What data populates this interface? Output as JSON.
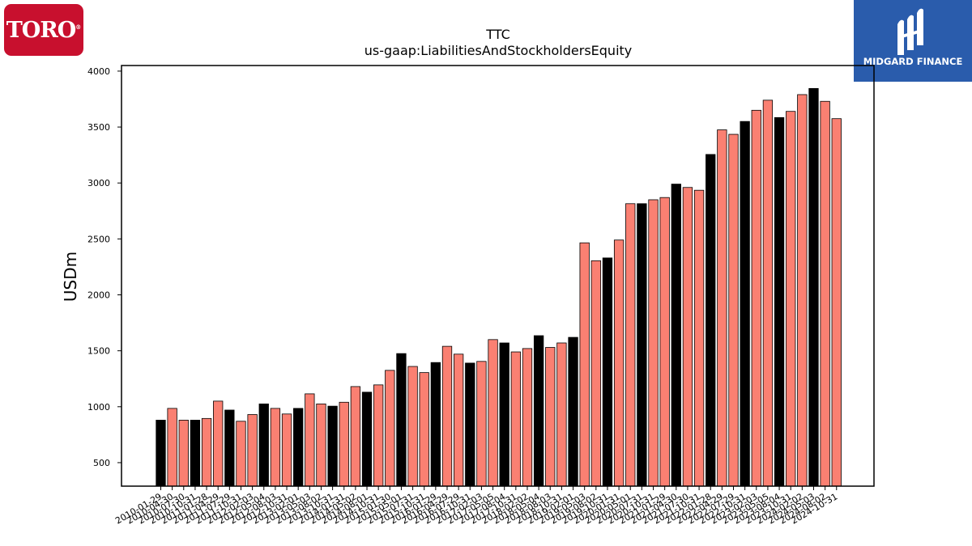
{
  "logos": {
    "left": {
      "text": "TORO",
      "mark": "®",
      "color": "#c8102e"
    },
    "right": {
      "text": "MIDGARD FINANCE",
      "color": "#2a5cac"
    }
  },
  "chart_data": {
    "type": "bar",
    "title": "TTC",
    "subtitle": "us-gaap:LiabilitiesAndStockholdersEquity",
    "xlabel": "",
    "ylabel": "USDm",
    "ylim": [
      290,
      4050
    ],
    "yticks": [
      500,
      1000,
      1500,
      2000,
      2500,
      3000,
      3500,
      4000
    ],
    "grid": false,
    "colors": {
      "annual": "#000000",
      "quarter": "#fa8072",
      "edge": "#000000"
    },
    "categories": [
      "2010-01-29",
      "2010-04-30",
      "2010-07-30",
      "2010-10-31",
      "2011-01-28",
      "2011-04-29",
      "2011-07-29",
      "2011-10-31",
      "2012-02-03",
      "2012-05-04",
      "2012-08-03",
      "2012-10-31",
      "2013-02-01",
      "2013-05-03",
      "2013-08-02",
      "2013-10-31",
      "2014-01-31",
      "2014-05-02",
      "2014-08-01",
      "2014-10-31",
      "2015-01-30",
      "2015-05-01",
      "2015-07-31",
      "2015-10-31",
      "2016-01-29",
      "2016-04-29",
      "2016-07-29",
      "2016-10-31",
      "2017-02-03",
      "2017-05-05",
      "2017-08-04",
      "2017-10-31",
      "2018-02-02",
      "2018-05-04",
      "2018-08-03",
      "2018-10-31",
      "2019-02-01",
      "2019-05-03",
      "2019-08-02",
      "2019-10-31",
      "2020-01-31",
      "2020-05-01",
      "2020-07-31",
      "2020-10-31",
      "2021-01-29",
      "2021-04-30",
      "2021-07-30",
      "2021-10-31",
      "2022-01-28",
      "2022-04-29",
      "2022-07-29",
      "2022-10-31",
      "2023-02-03",
      "2023-05-05",
      "2023-08-04",
      "2023-10-31",
      "2024-02-02",
      "2024-05-03",
      "2024-08-02",
      "2024-10-31"
    ],
    "tick_labels": [
      "2010-01-29",
      "2010-04-30",
      "2010-07-30",
      "2010-10-31",
      "2011-01-28",
      "2011-04-29",
      "2011-07-29",
      "2011-10-31",
      "2012-02-03",
      "2012-05-04",
      "2012-08-03",
      "2012-10-31",
      "2013-02-01",
      "2013-05-03",
      "2013-08-02",
      "2013-10-31",
      "2014-01-31",
      "2014-05-02",
      "2014-08-01",
      "2014-10-31",
      "2015-01-30",
      "2015-05-01",
      "2015-07-31",
      "2015-10-31",
      "2016-01-29",
      "2016-04-29",
      "2016-07-29",
      "2016-10-31",
      "2017-02-03",
      "2017-05-05",
      "2017-08-04",
      "2017-10-31",
      "2018-02-02",
      "2018-05-04",
      "2018-08-03",
      "2018-10-31",
      "2019-02-01",
      "2019-05-03",
      "2019-08-02",
      "2019-10-31",
      "2020-01-31",
      "2020-05-01",
      "2020-07-31",
      "2020-10-31",
      "2021-01-29",
      "2021-04-30",
      "2021-07-30",
      "2021-10-31",
      "2022-01-28",
      "2022-04-29",
      "2022-07-29",
      "2022-10-31",
      "2023-02-03",
      "2023-05-05",
      "2023-08-04",
      "2023-10-31",
      "2024-02-02",
      "2024-05-03",
      "2024-08-02",
      "2024-10-31"
    ],
    "values": [
      880,
      985,
      880,
      880,
      895,
      1050,
      970,
      870,
      930,
      1025,
      985,
      935,
      985,
      1115,
      1025,
      1005,
      1040,
      1180,
      1130,
      1195,
      1325,
      1475,
      1360,
      1305,
      1395,
      1540,
      1470,
      1390,
      1405,
      1600,
      1570,
      1490,
      1520,
      1635,
      1530,
      1570,
      1620,
      2465,
      2305,
      2330,
      2490,
      2815,
      2815,
      2850,
      2870,
      2990,
      2960,
      2935,
      3255,
      3475,
      3435,
      3550,
      3650,
      3740,
      3585,
      3640,
      3790,
      3845,
      3730,
      3575
    ],
    "annual_mask": [
      true,
      false,
      false,
      true,
      false,
      false,
      true,
      false,
      false,
      true,
      false,
      false,
      true,
      false,
      false,
      true,
      false,
      false,
      true,
      false,
      false,
      true,
      false,
      false,
      true,
      false,
      false,
      true,
      false,
      false,
      true,
      false,
      false,
      true,
      false,
      false,
      true,
      false,
      false,
      true,
      false,
      false,
      true,
      false,
      false,
      true,
      false,
      false,
      true,
      false,
      false,
      true,
      false,
      false,
      true,
      false,
      false,
      true,
      false,
      false
    ]
  }
}
